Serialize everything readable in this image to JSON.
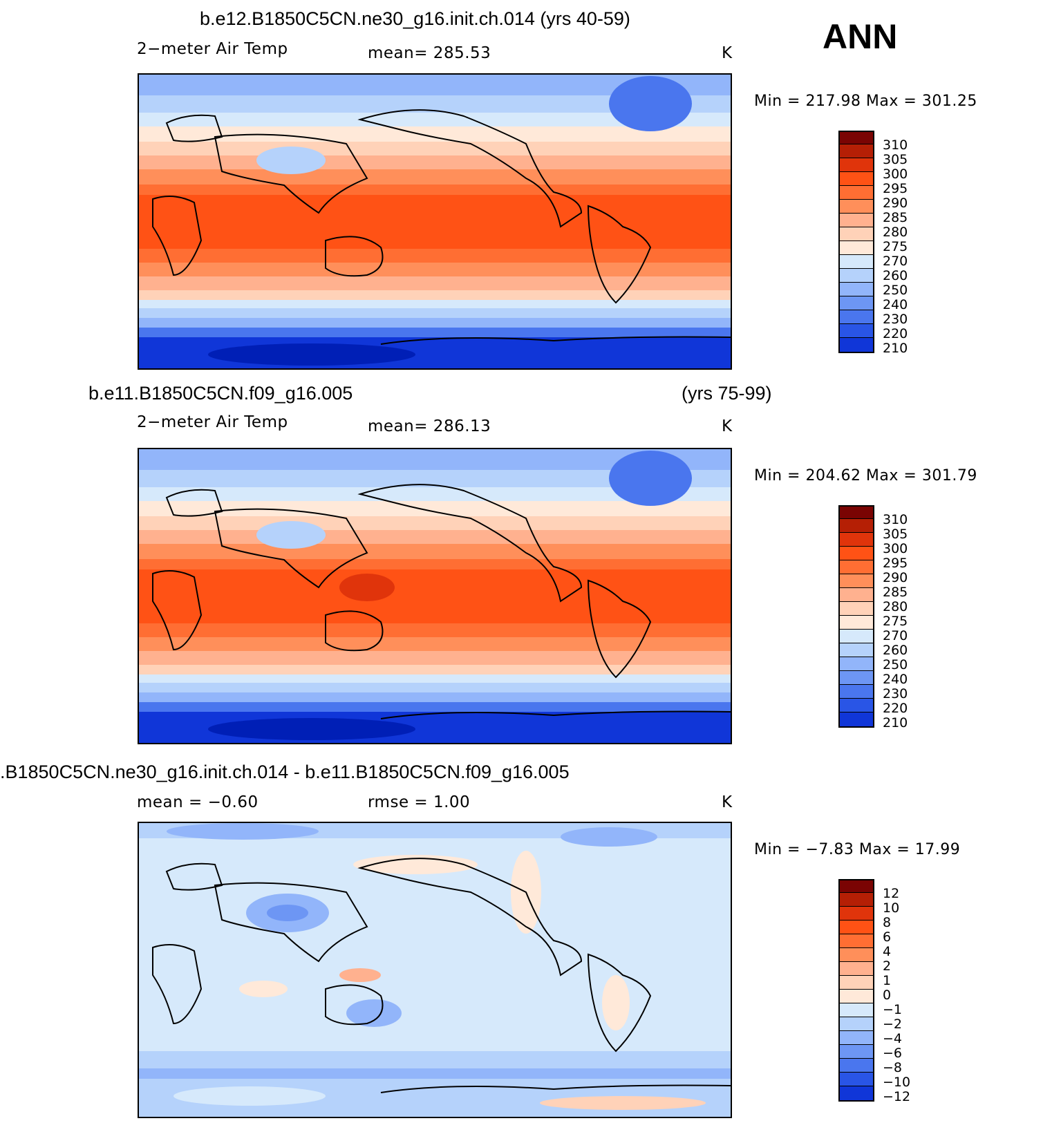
{
  "season": "ANN",
  "panels": [
    {
      "title": "b.e12.B1850C5CN.ne30_g16.init.ch.014 (yrs 40-59)",
      "title2": "",
      "left_label": "2−meter Air Temp",
      "center_label": "mean=  285.53",
      "units": "K",
      "stats": "Min  =  217.98  Max  =  301.25",
      "colorbar": {
        "colors": [
          "#7a0403",
          "#b51f05",
          "#e0340b",
          "#ff5215",
          "#ff6e33",
          "#ff8f5a",
          "#ffb18f",
          "#ffd2b8",
          "#ffe9d9",
          "#d6e9fb",
          "#b5d2fb",
          "#92b5fa",
          "#6d96f4",
          "#4a76ee",
          "#2955e6",
          "#1036d8",
          "#001fb6",
          "#00108c"
        ],
        "labels": [
          "310",
          "305",
          "300",
          "295",
          "290",
          "285",
          "280",
          "275",
          "270",
          "260",
          "250",
          "240",
          "230",
          "220",
          "210"
        ]
      }
    },
    {
      "title": "b.e11.B1850C5CN.f09_g16.005",
      "title2": "(yrs 75-99)",
      "left_label": "2−meter Air Temp",
      "center_label": "mean=  286.13",
      "units": "K",
      "stats": "Min  =  204.62  Max  =  301.79",
      "colorbar": {
        "colors": [
          "#7a0403",
          "#b51f05",
          "#e0340b",
          "#ff5215",
          "#ff6e33",
          "#ff8f5a",
          "#ffb18f",
          "#ffd2b8",
          "#ffe9d9",
          "#d6e9fb",
          "#b5d2fb",
          "#92b5fa",
          "#6d96f4",
          "#4a76ee",
          "#2955e6",
          "#1036d8",
          "#001fb6",
          "#00108c"
        ],
        "labels": [
          "310",
          "305",
          "300",
          "295",
          "290",
          "285",
          "280",
          "275",
          "270",
          "260",
          "250",
          "240",
          "230",
          "220",
          "210"
        ]
      }
    },
    {
      "title": ".B1850C5CN.ne30_g16.init.ch.014 - b.e11.B1850C5CN.f09_g16.005",
      "title2": "",
      "left_label": "mean  =     −0.60",
      "center_label": "rmse  =     1.00",
      "units": "K",
      "stats": "Min  =     −7.83  Max  =     17.99",
      "colorbar": {
        "colors": [
          "#7a0403",
          "#b51f05",
          "#e0340b",
          "#ff5215",
          "#ff6e33",
          "#ff8f5a",
          "#ffb18f",
          "#ffd2b8",
          "#ffe9d9",
          "#d6e9fb",
          "#b5d2fb",
          "#92b5fa",
          "#6d96f4",
          "#4a76ee",
          "#2955e6",
          "#1036d8",
          "#001fb6",
          "#00108c"
        ],
        "labels": [
          "12",
          "10",
          "8",
          "6",
          "4",
          "2",
          "1",
          "0",
          "−1",
          "−2",
          "−4",
          "−6",
          "−8",
          "−10",
          "−12"
        ]
      }
    }
  ]
}
